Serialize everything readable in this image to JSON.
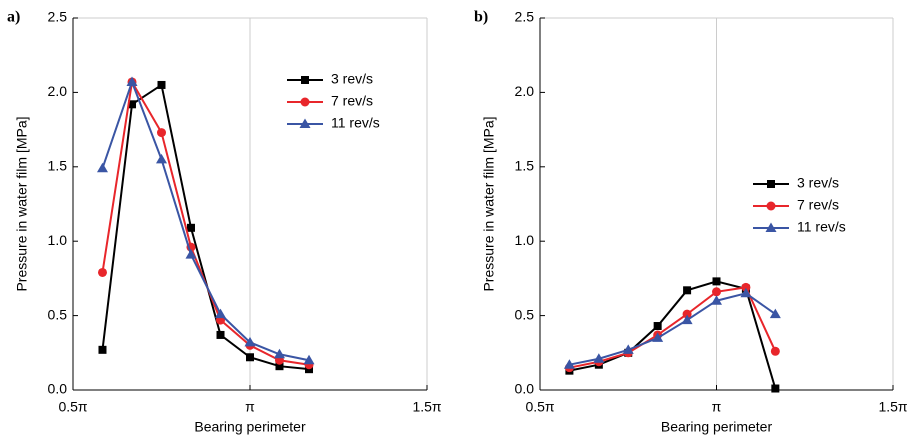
{
  "chart_data": [
    {
      "type": "line",
      "panel_label": "a)",
      "xlabel": "Bearing perimeter",
      "ylabel": "Pressure in water film [MPa]",
      "x": [
        0.5833,
        0.6667,
        0.75,
        0.8333,
        0.9167,
        1.0,
        1.0833,
        1.1667
      ],
      "xlim": [
        0.5,
        1.5
      ],
      "xticks": [
        {
          "value": 0.5,
          "label": "0.5π"
        },
        {
          "value": 1,
          "label": "π"
        },
        {
          "value": 1.5,
          "label": "1.5π"
        }
      ],
      "ylim": [
        0,
        2.5
      ],
      "yticks": [
        {
          "value": 0,
          "label": "0.0"
        },
        0.5,
        {
          "value": 1,
          "label": "1.0"
        },
        1.5,
        {
          "value": 2,
          "label": "2.0"
        },
        2.5
      ],
      "grid": true,
      "legend": "upper right",
      "series": [
        {
          "name": "3 rev/s",
          "color": "#000000",
          "marker": "square",
          "values": [
            0.27,
            1.92,
            2.05,
            1.09,
            0.37,
            0.22,
            0.16,
            0.14
          ]
        },
        {
          "name": "7 rev/s",
          "color": "#e8262b",
          "marker": "circle",
          "values": [
            0.79,
            2.07,
            1.73,
            0.96,
            0.47,
            0.3,
            0.2,
            0.17
          ]
        },
        {
          "name": "11 rev/s",
          "color": "#3a55a4",
          "marker": "triangle",
          "values": [
            1.49,
            2.07,
            1.55,
            0.91,
            0.51,
            0.32,
            0.24,
            0.2
          ]
        }
      ]
    },
    {
      "type": "line",
      "panel_label": "b)",
      "xlabel": "Bearing perimeter",
      "ylabel": "Pressure in water film [MPa]",
      "x": [
        0.5833,
        0.6667,
        0.75,
        0.8333,
        0.9167,
        1.0,
        1.0833,
        1.1667
      ],
      "xlim": [
        0.5,
        1.5
      ],
      "xticks": [
        {
          "value": 0.5,
          "label": "0.5π"
        },
        {
          "value": 1,
          "label": "π"
        },
        {
          "value": 1.5,
          "label": "1.5π"
        }
      ],
      "ylim": [
        0,
        2.5
      ],
      "yticks": [
        {
          "value": 0,
          "label": "0.0"
        },
        0.5,
        {
          "value": 1,
          "label": "1.0"
        },
        1.5,
        {
          "value": 2,
          "label": "2.0"
        },
        2.5
      ],
      "grid": true,
      "legend": "center right",
      "series": [
        {
          "name": "3 rev/s",
          "color": "#000000",
          "marker": "square",
          "values": [
            0.13,
            0.17,
            0.25,
            0.43,
            0.67,
            0.73,
            0.68,
            0.01
          ]
        },
        {
          "name": "7 rev/s",
          "color": "#e8262b",
          "marker": "circle",
          "values": [
            0.15,
            0.19,
            0.25,
            0.37,
            0.51,
            0.66,
            0.69,
            0.26
          ]
        },
        {
          "name": "11 rev/s",
          "color": "#3a55a4",
          "marker": "triangle",
          "values": [
            0.17,
            0.21,
            0.27,
            0.35,
            0.47,
            0.6,
            0.65,
            0.51
          ]
        }
      ]
    }
  ]
}
